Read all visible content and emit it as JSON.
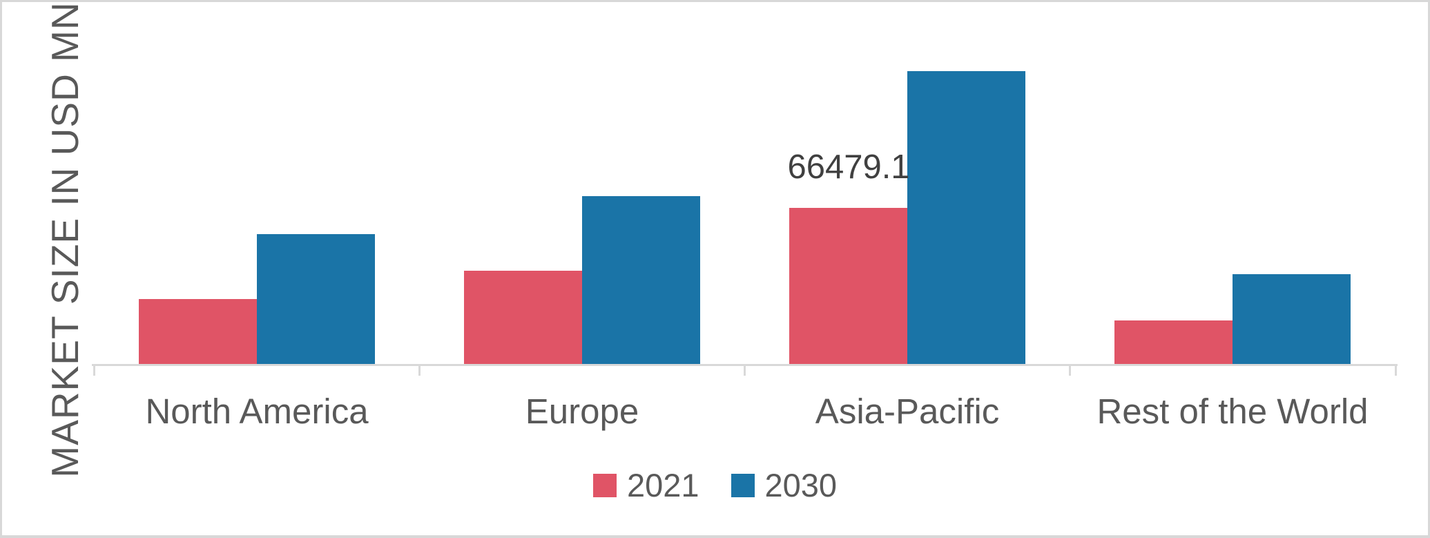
{
  "chart_data": {
    "type": "bar",
    "title": "",
    "xlabel": "",
    "ylabel": "MARKET SIZE IN USD MN",
    "categories": [
      "North America",
      "Europe",
      "Asia-Pacific",
      "Rest of the World"
    ],
    "series": [
      {
        "name": "2021",
        "color": "#e05466",
        "values": [
          28000,
          39950,
          66479.1,
          18950
        ]
      },
      {
        "name": "2030",
        "color": "#1a74a7",
        "values": [
          55400,
          71450,
          124200,
          38500
        ]
      }
    ],
    "data_label": {
      "series": "2021",
      "category": "Asia-Pacific",
      "text": "66479.1",
      "value": 66479.1
    },
    "ylim": [
      0,
      130000
    ],
    "grid": false,
    "y_tick_labels_shown": false,
    "legend_position": "bottom",
    "axis_color": "#d9d9d9",
    "text_color": "#595959",
    "data_label_color": "#404040",
    "background_color": "#ffffff"
  }
}
